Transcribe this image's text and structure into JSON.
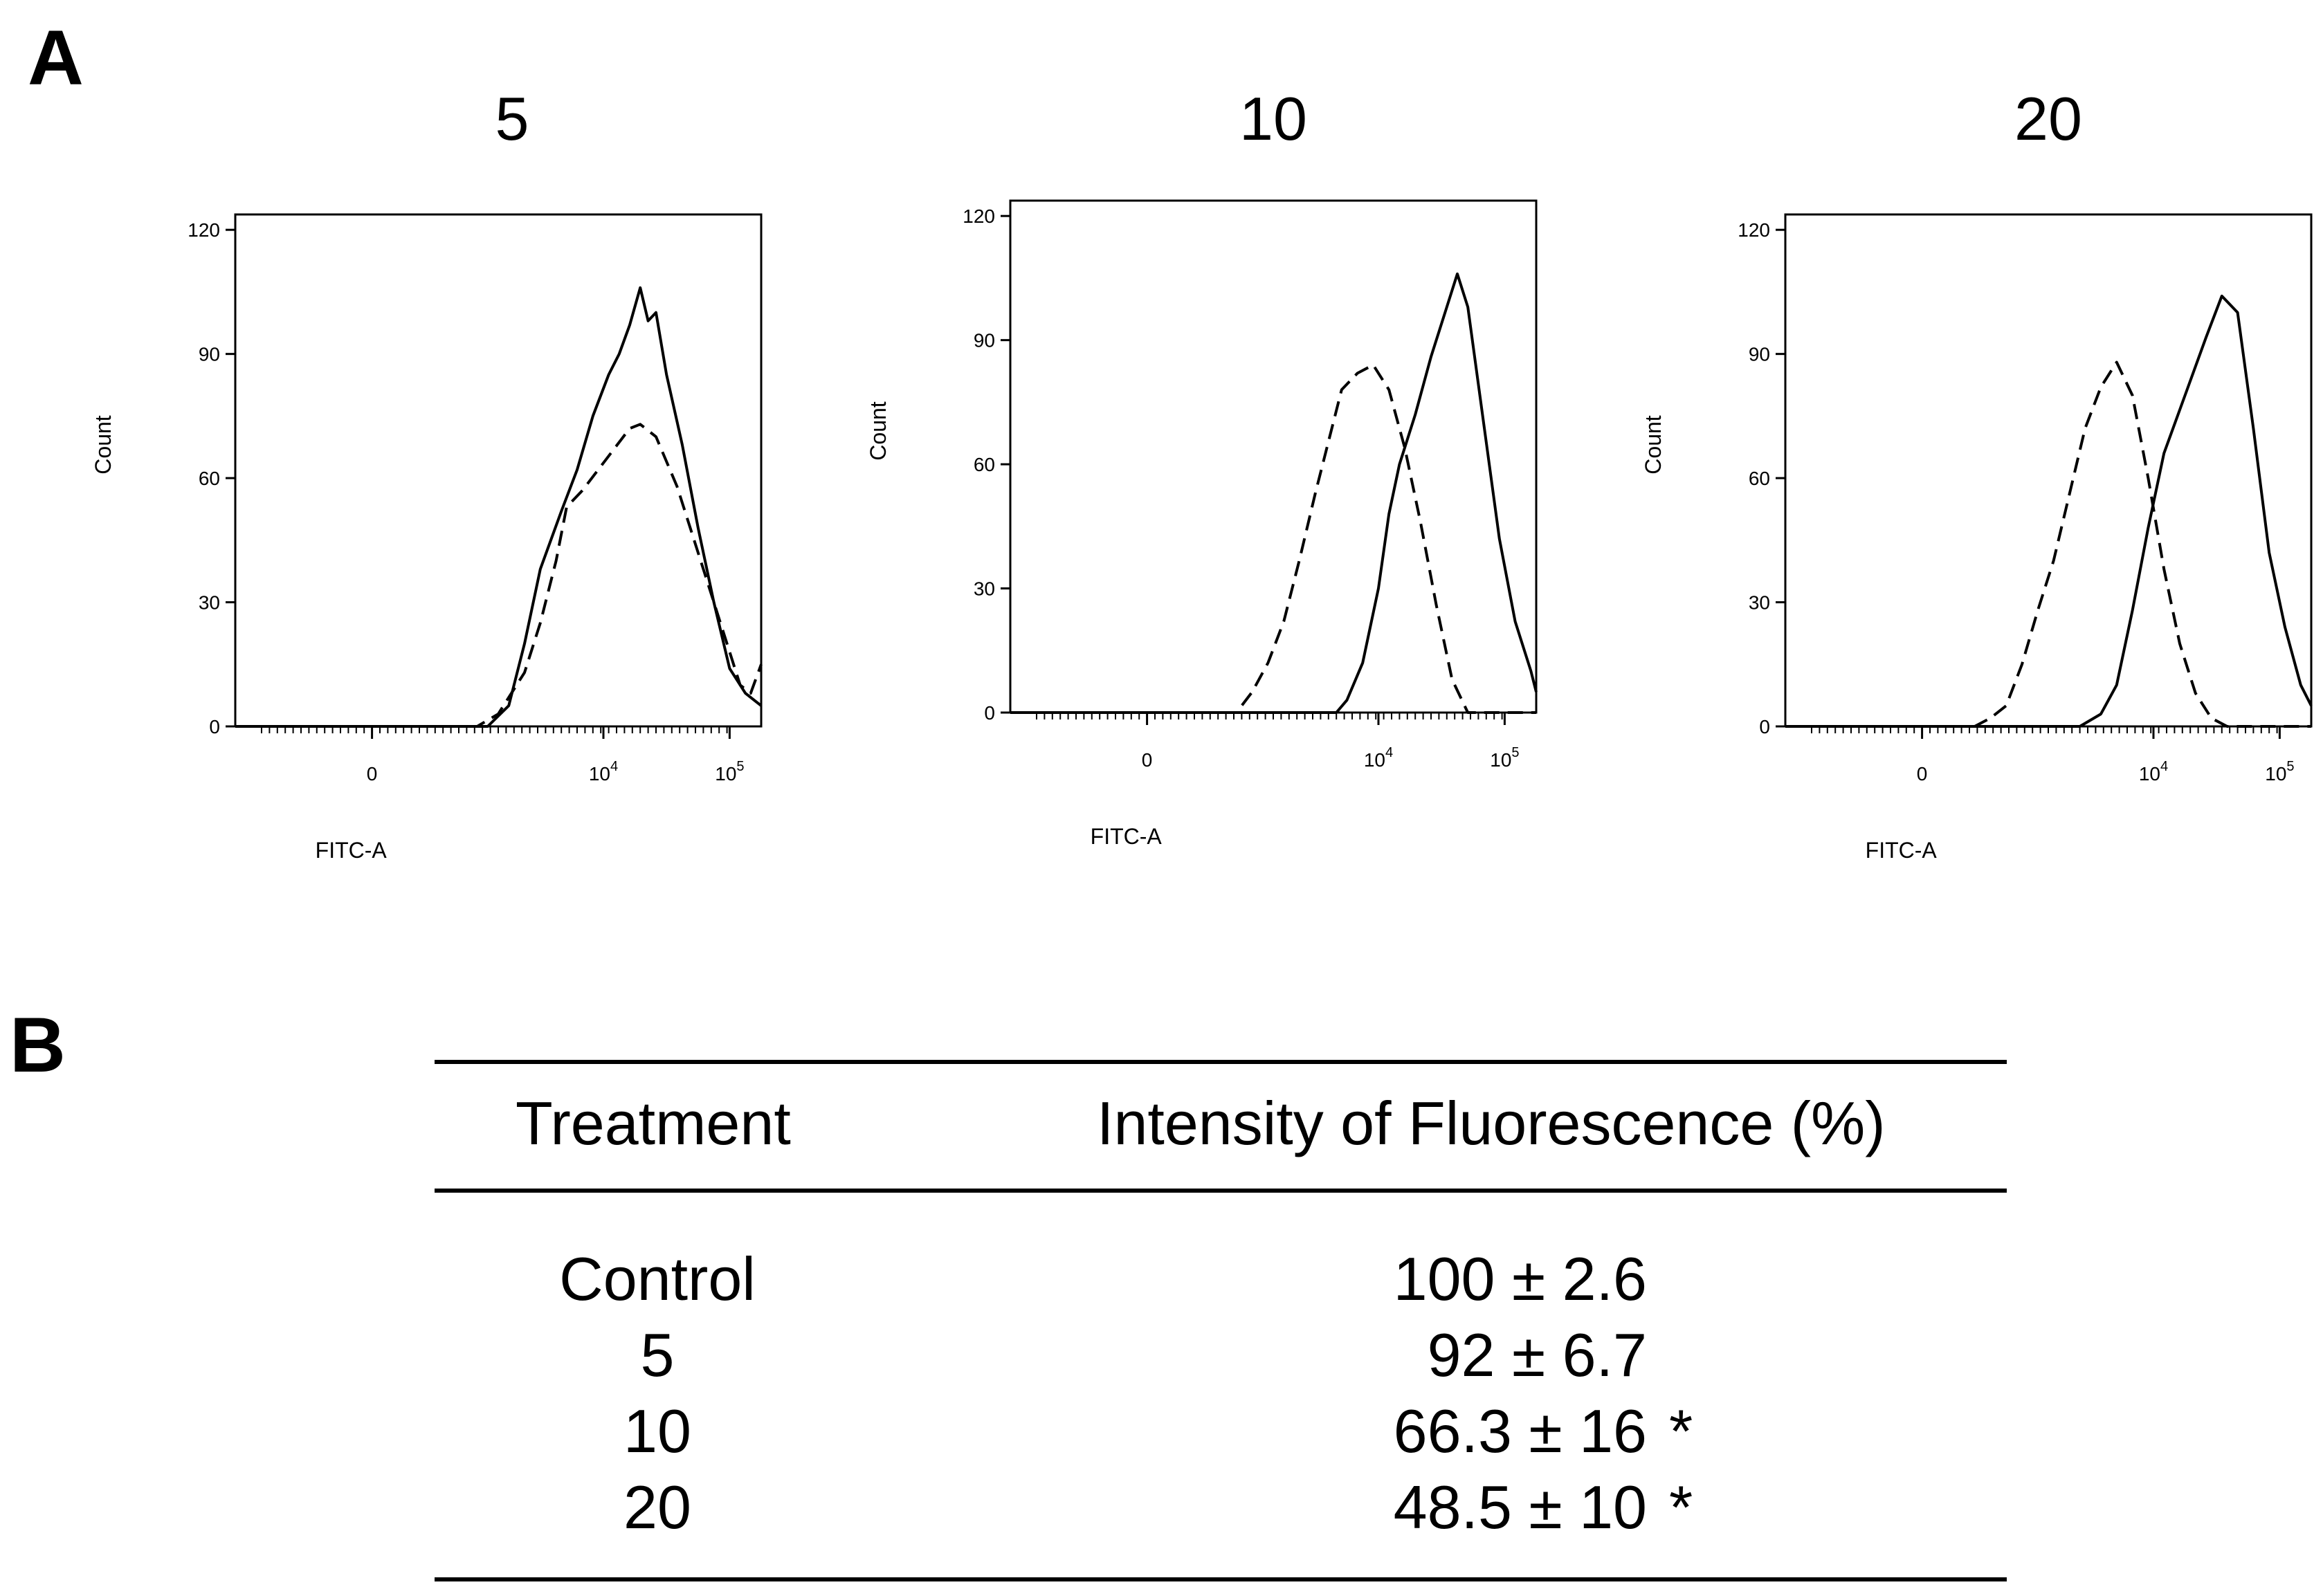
{
  "panel_a_label": "A",
  "panel_b_label": "B",
  "chart_data": [
    {
      "type": "line",
      "title": "5",
      "xlabel": "FITC-A",
      "ylabel": "Count",
      "y_ticks": [
        "0",
        "30",
        "60",
        "90",
        "120"
      ],
      "x_ticks": [
        {
          "base": "0",
          "exp": ""
        },
        {
          "base": "10",
          "exp": "4"
        },
        {
          "base": "10",
          "exp": "5"
        }
      ],
      "ylim": [
        0,
        120
      ],
      "x_scale": "biexponential",
      "series": [
        {
          "style": "solid",
          "points": [
            [
              0.0,
              0
            ],
            [
              0.44,
              0
            ],
            [
              0.48,
              0
            ],
            [
              0.52,
              5
            ],
            [
              0.55,
              20
            ],
            [
              0.58,
              38
            ],
            [
              0.62,
              52
            ],
            [
              0.65,
              62
            ],
            [
              0.68,
              75
            ],
            [
              0.71,
              85
            ],
            [
              0.73,
              90
            ],
            [
              0.75,
              97
            ],
            [
              0.77,
              106
            ],
            [
              0.785,
              98
            ],
            [
              0.8,
              100
            ],
            [
              0.82,
              85
            ],
            [
              0.85,
              68
            ],
            [
              0.88,
              48
            ],
            [
              0.91,
              30
            ],
            [
              0.94,
              14
            ],
            [
              0.97,
              8
            ],
            [
              1.0,
              5
            ]
          ]
        },
        {
          "style": "dashed",
          "points": [
            [
              0.0,
              0
            ],
            [
              0.46,
              0
            ],
            [
              0.5,
              3
            ],
            [
              0.55,
              13
            ],
            [
              0.58,
              25
            ],
            [
              0.61,
              40
            ],
            [
              0.63,
              53
            ],
            [
              0.66,
              57
            ],
            [
              0.69,
              62
            ],
            [
              0.72,
              67
            ],
            [
              0.75,
              72
            ],
            [
              0.77,
              73
            ],
            [
              0.8,
              70
            ],
            [
              0.84,
              58
            ],
            [
              0.87,
              46
            ],
            [
              0.9,
              34
            ],
            [
              0.93,
              22
            ],
            [
              0.96,
              10
            ],
            [
              0.98,
              8
            ],
            [
              1.0,
              15
            ]
          ]
        }
      ]
    },
    {
      "type": "line",
      "title": "10",
      "xlabel": "FITC-A",
      "ylabel": "Count",
      "y_ticks": [
        "0",
        "30",
        "60",
        "90",
        "120"
      ],
      "x_ticks": [
        {
          "base": "0",
          "exp": ""
        },
        {
          "base": "10",
          "exp": "4"
        },
        {
          "base": "10",
          "exp": "5"
        }
      ],
      "ylim": [
        0,
        120
      ],
      "x_scale": "biexponential",
      "series": [
        {
          "style": "solid",
          "points": [
            [
              0.0,
              0
            ],
            [
              0.62,
              0
            ],
            [
              0.64,
              3
            ],
            [
              0.67,
              12
            ],
            [
              0.7,
              30
            ],
            [
              0.72,
              48
            ],
            [
              0.74,
              60
            ],
            [
              0.77,
              72
            ],
            [
              0.8,
              86
            ],
            [
              0.83,
              98
            ],
            [
              0.85,
              106
            ],
            [
              0.87,
              98
            ],
            [
              0.9,
              70
            ],
            [
              0.93,
              42
            ],
            [
              0.96,
              22
            ],
            [
              0.99,
              10
            ],
            [
              1.0,
              5
            ]
          ]
        },
        {
          "style": "dashed",
          "points": [
            [
              0.0,
              0
            ],
            [
              0.43,
              0
            ],
            [
              0.46,
              5
            ],
            [
              0.49,
              12
            ],
            [
              0.52,
              22
            ],
            [
              0.55,
              37
            ],
            [
              0.58,
              53
            ],
            [
              0.61,
              68
            ],
            [
              0.63,
              78
            ],
            [
              0.66,
              82
            ],
            [
              0.69,
              84
            ],
            [
              0.72,
              78
            ],
            [
              0.75,
              64
            ],
            [
              0.78,
              46
            ],
            [
              0.81,
              26
            ],
            [
              0.84,
              8
            ],
            [
              0.87,
              0
            ],
            [
              1.0,
              0
            ]
          ]
        }
      ]
    },
    {
      "type": "line",
      "title": "20",
      "xlabel": "FITC-A",
      "ylabel": "Count",
      "y_ticks": [
        "0",
        "30",
        "60",
        "90",
        "120"
      ],
      "x_ticks": [
        {
          "base": "0",
          "exp": ""
        },
        {
          "base": "10",
          "exp": "4"
        },
        {
          "base": "10",
          "exp": "5"
        }
      ],
      "ylim": [
        0,
        120
      ],
      "x_scale": "biexponential",
      "series": [
        {
          "style": "solid",
          "points": [
            [
              0.0,
              0
            ],
            [
              0.56,
              0
            ],
            [
              0.6,
              3
            ],
            [
              0.63,
              10
            ],
            [
              0.66,
              28
            ],
            [
              0.69,
              48
            ],
            [
              0.72,
              66
            ],
            [
              0.76,
              80
            ],
            [
              0.8,
              94
            ],
            [
              0.83,
              104
            ],
            [
              0.86,
              100
            ],
            [
              0.89,
              72
            ],
            [
              0.92,
              42
            ],
            [
              0.95,
              24
            ],
            [
              0.98,
              10
            ],
            [
              1.0,
              5
            ]
          ]
        },
        {
          "style": "dashed",
          "points": [
            [
              0.0,
              0
            ],
            [
              0.36,
              0
            ],
            [
              0.39,
              2
            ],
            [
              0.42,
              5
            ],
            [
              0.45,
              15
            ],
            [
              0.48,
              28
            ],
            [
              0.51,
              40
            ],
            [
              0.54,
              56
            ],
            [
              0.57,
              72
            ],
            [
              0.6,
              82
            ],
            [
              0.63,
              88
            ],
            [
              0.66,
              80
            ],
            [
              0.69,
              60
            ],
            [
              0.72,
              38
            ],
            [
              0.75,
              20
            ],
            [
              0.78,
              8
            ],
            [
              0.81,
              2
            ],
            [
              0.84,
              0
            ],
            [
              1.0,
              0
            ]
          ]
        }
      ]
    },
    {
      "type": "table",
      "headers": [
        "Treatment",
        "Intensity of Fluorescence (%)"
      ],
      "rows": [
        {
          "treatment": "Control",
          "value": "100 ± 2.6",
          "mark": ""
        },
        {
          "treatment": "5",
          "value": "92 ± 6.7",
          "mark": ""
        },
        {
          "treatment": "10",
          "value": "66.3 ± 16",
          "mark": "*"
        },
        {
          "treatment": "20",
          "value": "48.5 ± 10",
          "mark": "*"
        }
      ]
    }
  ]
}
